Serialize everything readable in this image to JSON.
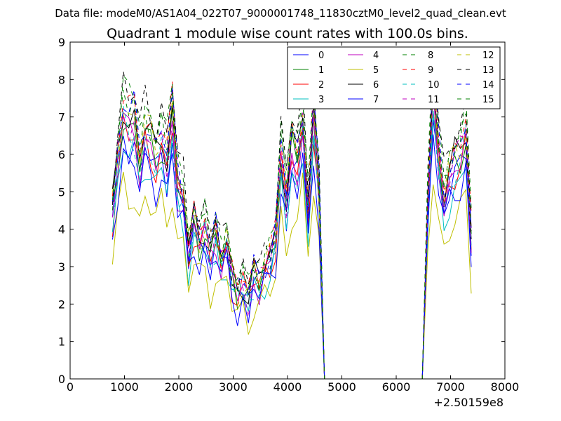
{
  "chart_data": {
    "type": "line",
    "suptitle": "Data file: modeM0/AS1A04_022T07_9000001748_11830cztM0_level2_quad_clean.evt",
    "title": "Quadrant 1 module wise count rates with 100.0s bins.",
    "xlabel": "",
    "ylabel": "",
    "x_offset_label": "+2.50159e8",
    "xlim": [
      0,
      8000
    ],
    "ylim": [
      0,
      9
    ],
    "x_ticks": [
      0,
      1000,
      2000,
      3000,
      4000,
      5000,
      6000,
      7000,
      8000
    ],
    "y_ticks": [
      0,
      1,
      2,
      3,
      4,
      5,
      6,
      7,
      8,
      9
    ],
    "x_tick_labels": [
      "0",
      "1000",
      "2000",
      "3000",
      "4000",
      "5000",
      "6000",
      "7000",
      "8000"
    ],
    "y_tick_labels": [
      "0",
      "1",
      "2",
      "3",
      "4",
      "5",
      "6",
      "7",
      "8",
      "9"
    ],
    "legend_position": "top-right",
    "x": [
      780,
      880,
      980,
      1080,
      1180,
      1280,
      1380,
      1480,
      1580,
      1680,
      1780,
      1880,
      1980,
      2080,
      2180,
      2280,
      2380,
      2480,
      2580,
      2680,
      2780,
      2880,
      2980,
      3080,
      3180,
      3280,
      3380,
      3480,
      3580,
      3680,
      3780,
      3880,
      3980,
      4080,
      4180,
      4280,
      4380,
      4480,
      4580,
      4680,
      4780,
      4880,
      4980,
      5080,
      5180,
      5280,
      5380,
      5480,
      5580,
      5680,
      5780,
      5880,
      5980,
      6080,
      6180,
      6280,
      6380,
      6480,
      6580,
      6680,
      6780,
      6880,
      6980,
      7080,
      7180,
      7280,
      7380
    ],
    "base_profile": [
      4.3,
      5.7,
      6.9,
      6.5,
      6.6,
      5.6,
      6.4,
      6.1,
      5.7,
      6.2,
      5.6,
      6.8,
      5.0,
      4.7,
      3.2,
      4.1,
      3.6,
      3.9,
      3.2,
      3.7,
      3.1,
      3.5,
      2.6,
      2.2,
      2.5,
      2.1,
      2.7,
      2.5,
      2.9,
      3.1,
      3.6,
      5.8,
      4.6,
      6.0,
      5.6,
      6.7,
      4.3,
      6.8,
      4.9,
      0.0,
      0.0,
      0.0,
      0.0,
      0.0,
      0.0,
      0.0,
      0.0,
      0.0,
      0.0,
      0.0,
      0.0,
      0.0,
      0.0,
      0.0,
      0.0,
      0.0,
      0.0,
      0.0,
      4.5,
      7.5,
      5.8,
      4.6,
      5.2,
      5.6,
      5.8,
      6.4,
      3.6
    ],
    "module_scale": [
      0.96,
      1.02,
      0.99,
      0.91,
      1.0,
      0.75,
      1.06,
      0.89,
      1.12,
      1.1,
      0.98,
      1.04,
      1.07,
      1.17,
      1.09,
      1.14
    ],
    "series": [
      {
        "name": "0",
        "color": "#0000ff",
        "style": "solid"
      },
      {
        "name": "1",
        "color": "#008000",
        "style": "solid"
      },
      {
        "name": "2",
        "color": "#ff0000",
        "style": "solid"
      },
      {
        "name": "3",
        "color": "#00bfbf",
        "style": "solid"
      },
      {
        "name": "4",
        "color": "#bf00bf",
        "style": "solid"
      },
      {
        "name": "5",
        "color": "#bfbf00",
        "style": "solid"
      },
      {
        "name": "6",
        "color": "#000000",
        "style": "solid"
      },
      {
        "name": "7",
        "color": "#0000ff",
        "style": "solid"
      },
      {
        "name": "8",
        "color": "#008000",
        "style": "dashed"
      },
      {
        "name": "9",
        "color": "#ff0000",
        "style": "dashed"
      },
      {
        "name": "10",
        "color": "#00bfbf",
        "style": "dashed"
      },
      {
        "name": "11",
        "color": "#bf00bf",
        "style": "dashed"
      },
      {
        "name": "12",
        "color": "#bfbf00",
        "style": "dashed"
      },
      {
        "name": "13",
        "color": "#000000",
        "style": "dashed"
      },
      {
        "name": "14",
        "color": "#0000ff",
        "style": "dashed"
      },
      {
        "name": "15",
        "color": "#008000",
        "style": "dashed"
      }
    ]
  }
}
